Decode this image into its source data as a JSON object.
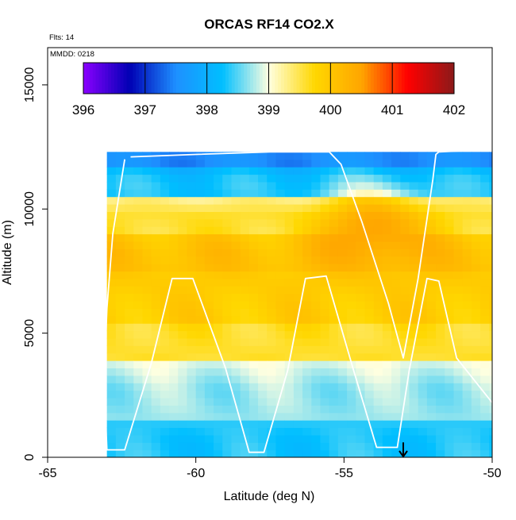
{
  "chart_data": {
    "type": "heatmap",
    "title": "ORCAS RF14 CO2.X",
    "xlabel": "Latitude (deg N)",
    "ylabel": "Altitude (m)",
    "xlim": [
      -65,
      -50
    ],
    "ylim": [
      0,
      16500
    ],
    "x_ticks": [
      -65,
      -60,
      -55,
      -50
    ],
    "y_ticks": [
      0,
      5000,
      10000,
      15000
    ],
    "annotations": {
      "flights": "Flts: 14",
      "date": "MMDD: 0218"
    },
    "colorbar": {
      "min": 396,
      "max": 402,
      "ticks": [
        396,
        397,
        398,
        399,
        400,
        401,
        402
      ],
      "colors": [
        "#8b00ff",
        "#0000b4",
        "#1e90ff",
        "#00bfff",
        "#ffffe0",
        "#ffd700",
        "#ffa500",
        "#ff0000",
        "#8b1a1a"
      ]
    },
    "field": {
      "lat_range": [
        -63.0,
        -50.0
      ],
      "alt_range": [
        0,
        12300
      ],
      "layers": [
        {
          "alt_bottom": 0,
          "alt_top": 1500,
          "co2_ppm": 398.3
        },
        {
          "alt_bottom": 1500,
          "alt_top": 4000,
          "co2_ppm": 398.7
        },
        {
          "alt_bottom": 4000,
          "alt_top": 5500,
          "co2_ppm": 399.6
        },
        {
          "alt_bottom": 5500,
          "alt_top": 7500,
          "co2_ppm": 399.9
        },
        {
          "alt_bottom": 7500,
          "alt_top": 9000,
          "co2_ppm": 400.1
        },
        {
          "alt_bottom": 9000,
          "alt_top": 10500,
          "co2_ppm": 399.6
        },
        {
          "alt_bottom": 10500,
          "alt_top": 11800,
          "co2_ppm": 398.3
        },
        {
          "alt_bottom": 11800,
          "alt_top": 12300,
          "co2_ppm": 397.5
        }
      ],
      "enhanced_region": {
        "lat_range": [
          -55.5,
          -52.5
        ],
        "alt_range": [
          7500,
          10800
        ],
        "co2_ppm": 400.6
      }
    },
    "flight_track": [
      [
        -62.4,
        12000
      ],
      [
        -62.8,
        9000
      ],
      [
        -63.0,
        6000
      ],
      [
        -63.1,
        3000
      ],
      [
        -63.0,
        300
      ],
      [
        -62.4,
        300
      ],
      [
        -61.5,
        3800
      ],
      [
        -60.8,
        7200
      ],
      [
        -60.1,
        7200
      ],
      [
        -59.0,
        3600
      ],
      [
        -58.2,
        200
      ],
      [
        -57.7,
        200
      ],
      [
        -56.9,
        3500
      ],
      [
        -56.3,
        7200
      ],
      [
        -55.6,
        7300
      ],
      [
        -54.7,
        3600
      ],
      [
        -53.9,
        400
      ],
      [
        -53.2,
        400
      ],
      [
        -52.8,
        3500
      ],
      [
        -52.2,
        7200
      ],
      [
        -51.8,
        7100
      ],
      [
        -51.2,
        4000
      ],
      [
        -50.0,
        2200
      ]
    ],
    "upper_track": [
      [
        -62.2,
        12100
      ],
      [
        -60.0,
        12200
      ],
      [
        -57.5,
        12300
      ],
      [
        -55.5,
        12300
      ],
      [
        -55.1,
        11800
      ],
      [
        -54.4,
        9500
      ],
      [
        -53.5,
        6200
      ],
      [
        -53.0,
        4000
      ],
      [
        -52.5,
        7200
      ],
      [
        -52.0,
        11200
      ],
      [
        -51.9,
        12200
      ],
      [
        -51.8,
        12300
      ],
      [
        -50.1,
        12400
      ]
    ],
    "marker": {
      "lat": -53.0,
      "alt_top": 600,
      "symbol": "arrow-down"
    }
  },
  "ui": {
    "title": "ORCAS RF14 CO2.X",
    "flights": "Flts: 14",
    "date": "MMDD: 0218",
    "xlabel": "Latitude (deg N)",
    "ylabel": "Altitude (m)"
  }
}
